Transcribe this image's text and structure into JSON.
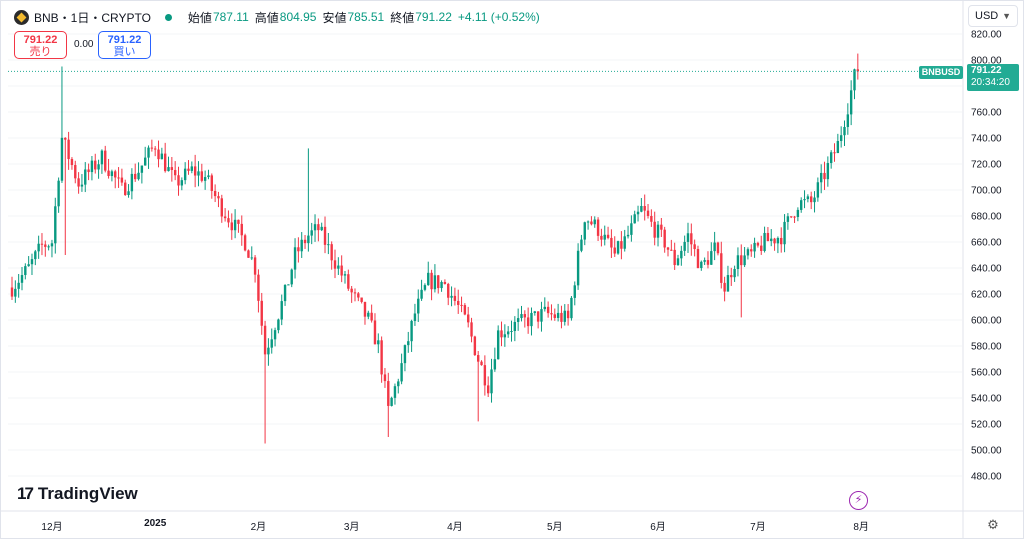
{
  "header": {
    "symbol": "BNB・1日・CRYPTO",
    "open_label": "始値",
    "open": "787.11",
    "high_label": "高値",
    "high": "804.95",
    "low_label": "安値",
    "low": "785.51",
    "close_label": "終値",
    "close": "791.22",
    "change": "+4.11 (+0.52%)"
  },
  "trade": {
    "sell_price": "791.22",
    "sell_label": "売り",
    "spread": "0.00",
    "buy_price": "791.22",
    "buy_label": "買い"
  },
  "currency": "USD",
  "last_price": {
    "symbol": "BNBUSD",
    "price": "791.22",
    "countdown": "20:34:20"
  },
  "brand": "TradingView",
  "colors": {
    "up": "#089981",
    "down": "#f23645",
    "accent": "#22ab94"
  },
  "chart_data": {
    "type": "candlestick",
    "last_close": 791.22,
    "yaxis": {
      "range": [
        475,
        826
      ],
      "ticks": [
        480,
        500,
        520,
        540,
        560,
        580,
        600,
        620,
        640,
        660,
        680,
        700,
        720,
        740,
        760,
        780,
        800,
        820
      ],
      "tick_labels": [
        "480.00",
        "500.00",
        "520.00",
        "540.00",
        "560.00",
        "580.00",
        "600.00",
        "620.00",
        "640.00",
        "660.00",
        "680.00",
        "700.00",
        "720.00",
        "740.00",
        "760.00",
        "780.00",
        "800.00",
        "820.00"
      ]
    },
    "xaxis": {
      "ticks": [
        {
          "label": "12月",
          "index": 12,
          "bold": false
        },
        {
          "label": "2025",
          "index": 43,
          "bold": true
        },
        {
          "label": "2月",
          "index": 74,
          "bold": false
        },
        {
          "label": "3月",
          "index": 102,
          "bold": false
        },
        {
          "label": "4月",
          "index": 133,
          "bold": false
        },
        {
          "label": "5月",
          "index": 163,
          "bold": false
        },
        {
          "label": "6月",
          "index": 194,
          "bold": false
        },
        {
          "label": "7月",
          "index": 224,
          "bold": false
        },
        {
          "label": "8月",
          "index": 255,
          "bold": false
        }
      ]
    },
    "waypoints": [
      [
        0,
        625
      ],
      [
        5,
        640
      ],
      [
        9,
        657
      ],
      [
        12,
        660
      ],
      [
        15,
        740
      ],
      [
        20,
        705
      ],
      [
        27,
        725
      ],
      [
        33,
        700
      ],
      [
        38,
        715
      ],
      [
        43,
        735
      ],
      [
        49,
        705
      ],
      [
        54,
        715
      ],
      [
        58,
        710
      ],
      [
        62,
        690
      ],
      [
        66,
        675
      ],
      [
        70,
        660
      ],
      [
        73,
        640
      ],
      [
        76,
        575
      ],
      [
        82,
        620
      ],
      [
        85,
        650
      ],
      [
        89,
        665
      ],
      [
        92,
        670
      ],
      [
        98,
        640
      ],
      [
        102,
        620
      ],
      [
        107,
        600
      ],
      [
        110,
        580
      ],
      [
        113,
        530
      ],
      [
        117,
        565
      ],
      [
        121,
        605
      ],
      [
        125,
        630
      ],
      [
        130,
        628
      ],
      [
        134,
        610
      ],
      [
        137,
        595
      ],
      [
        140,
        570
      ],
      [
        143,
        550
      ],
      [
        146,
        590
      ],
      [
        150,
        595
      ],
      [
        155,
        600
      ],
      [
        160,
        605
      ],
      [
        165,
        602
      ],
      [
        167,
        600
      ],
      [
        172,
        680
      ],
      [
        176,
        670
      ],
      [
        181,
        650
      ],
      [
        185,
        665
      ],
      [
        189,
        685
      ],
      [
        193,
        670
      ],
      [
        196,
        660
      ],
      [
        199,
        645
      ],
      [
        203,
        665
      ],
      [
        207,
        640
      ],
      [
        211,
        655
      ],
      [
        214,
        625
      ],
      [
        217,
        645
      ],
      [
        222,
        650
      ],
      [
        226,
        660
      ],
      [
        231,
        665
      ],
      [
        236,
        690
      ],
      [
        240,
        690
      ],
      [
        244,
        712
      ],
      [
        248,
        735
      ],
      [
        251,
        765
      ],
      [
        253,
        787
      ],
      [
        254,
        791.22
      ]
    ],
    "spikes": [
      {
        "index": 15,
        "high": 795
      },
      {
        "index": 16,
        "low": 650
      },
      {
        "index": 76,
        "low": 505
      },
      {
        "index": 89,
        "high": 732
      },
      {
        "index": 113,
        "low": 510
      },
      {
        "index": 140,
        "low": 522
      },
      {
        "index": 219,
        "low": 602
      },
      {
        "index": 254,
        "high": 804.95
      }
    ]
  }
}
